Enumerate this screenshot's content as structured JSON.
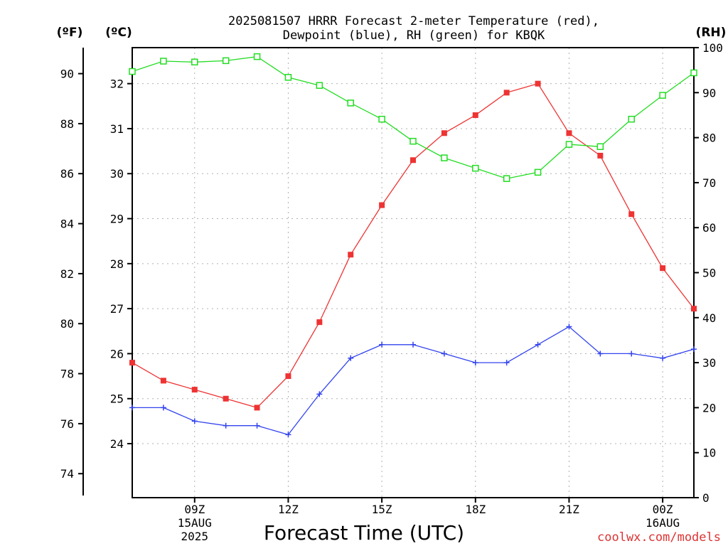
{
  "chart_data": {
    "type": "line",
    "title_lines": [
      "2025081507 HRRR Forecast 2-meter Temperature (red),",
      "Dewpoint (blue), RH (green) for KBQK"
    ],
    "xlabel": "Forecast Time (UTC)",
    "credit": "coolwx.com/models",
    "axis_units": {
      "f": "(ºF)",
      "c": "(ºC)",
      "rh": "(RH)"
    },
    "x_hours": [
      7,
      8,
      9,
      10,
      11,
      12,
      13,
      14,
      15,
      16,
      17,
      18,
      19,
      20,
      21,
      22,
      23,
      24,
      25
    ],
    "xlim": [
      7,
      25
    ],
    "x_ticks": [
      {
        "hour": 9,
        "lines": [
          "09Z",
          "15AUG",
          "2025"
        ]
      },
      {
        "hour": 12,
        "lines": [
          "12Z"
        ]
      },
      {
        "hour": 15,
        "lines": [
          "15Z"
        ]
      },
      {
        "hour": 18,
        "lines": [
          "18Z"
        ]
      },
      {
        "hour": 21,
        "lines": [
          "21Z"
        ]
      },
      {
        "hour": 24,
        "lines": [
          "00Z",
          "16AUG"
        ]
      }
    ],
    "celsius_axis": {
      "range": [
        22.8,
        32.8
      ],
      "ticks": [
        24,
        25,
        26,
        27,
        28,
        29,
        30,
        31,
        32
      ]
    },
    "fahrenheit_axis": {
      "range": [
        73.04,
        91.04
      ],
      "ticks": [
        74,
        76,
        78,
        80,
        82,
        84,
        86,
        88,
        90
      ]
    },
    "rh_axis": {
      "range": [
        0,
        100
      ],
      "ticks": [
        0,
        10,
        20,
        30,
        40,
        50,
        60,
        70,
        80,
        90,
        100
      ]
    },
    "grid": true,
    "series": [
      {
        "name": "Temperature",
        "color": "#ee3333",
        "marker": "filled-square",
        "axis": "c",
        "values": [
          25.8,
          25.4,
          25.2,
          25.0,
          24.8,
          25.5,
          26.7,
          28.2,
          29.3,
          30.3,
          30.9,
          31.3,
          31.8,
          32.0,
          30.9,
          30.4,
          29.1,
          27.9,
          27.0
        ]
      },
      {
        "name": "Dewpoint",
        "color": "#3344ee",
        "marker": "plus",
        "axis": "c",
        "values": [
          24.8,
          24.8,
          24.5,
          24.4,
          24.4,
          24.2,
          25.1,
          25.9,
          26.2,
          26.2,
          26.0,
          25.8,
          25.8,
          26.2,
          26.6,
          26.0,
          26.0,
          25.9,
          26.1
        ]
      },
      {
        "name": "RH",
        "color": "#22dd22",
        "marker": "open-square",
        "axis": "rh",
        "values": [
          94.7,
          97.0,
          96.8,
          97.1,
          98.0,
          93.4,
          91.6,
          87.7,
          84.1,
          79.2,
          75.5,
          73.2,
          70.9,
          72.3,
          78.5,
          78.0,
          84.1,
          89.4,
          94.4
        ]
      }
    ]
  }
}
